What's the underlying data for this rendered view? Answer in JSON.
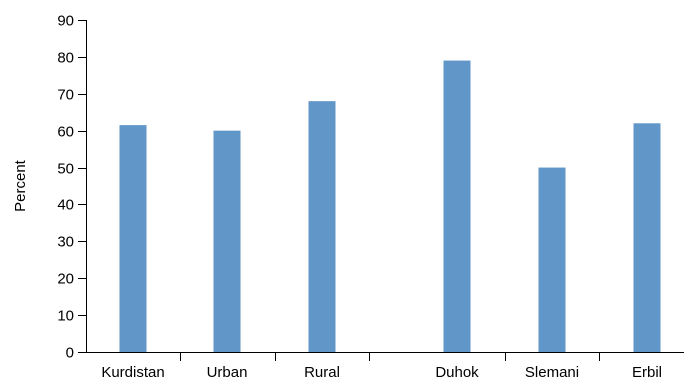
{
  "chart_data": {
    "type": "bar",
    "title": "",
    "xlabel": "",
    "ylabel": "Percent",
    "ylim": [
      0,
      90
    ],
    "yticks": [
      0,
      10,
      20,
      30,
      40,
      50,
      60,
      70,
      80,
      90
    ],
    "categories": [
      "Kurdistan",
      "Urban",
      "Rural",
      "Duhok",
      "Slemani",
      "Erbil"
    ],
    "groups": [
      {
        "categories": [
          "Kurdistan",
          "Urban",
          "Rural"
        ]
      },
      {
        "categories": [
          "Duhok",
          "Slemani",
          "Erbil"
        ]
      }
    ],
    "values": [
      61.5,
      60,
      68,
      79,
      50,
      62
    ],
    "bar_color": "#6096c8",
    "grid": false,
    "legend": "none"
  }
}
